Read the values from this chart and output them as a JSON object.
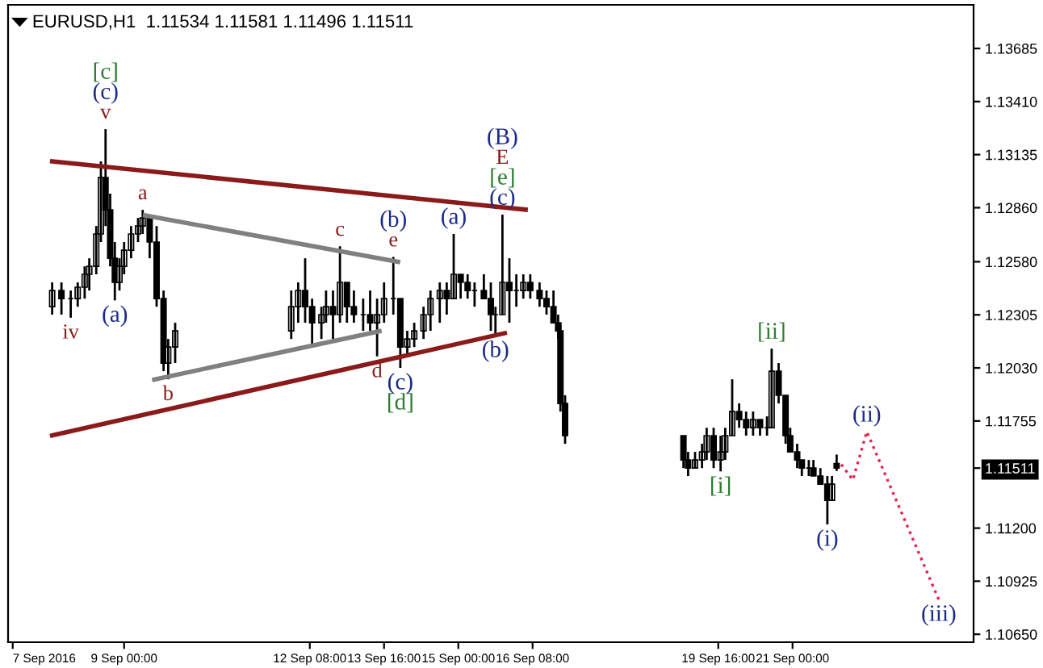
{
  "chart_data": {
    "type": "candlestick",
    "title": "EURUSD,H1  1.11534 1.11581 1.11496 1.11511",
    "x": [
      "2016-09-07T17:00",
      "2016-09-07T21:00",
      "2016-09-08T01:00",
      "2016-09-08T04:00",
      "2016-09-08T07:00",
      "2016-09-08T09:00",
      "2016-09-08T12:00",
      "2016-09-08T14:00",
      "2016-09-08T16:00",
      "2016-09-08T18:00",
      "2016-09-08T20:00",
      "2016-09-08T22:00",
      "2016-09-09T00:00",
      "2016-09-09T03:00",
      "2016-09-09T06:00",
      "2016-09-09T08:00",
      "2016-09-09T11:00",
      "2016-09-09T14:00",
      "2016-09-09T17:00",
      "2016-09-09T19:00",
      "2016-09-09T22:00",
      "2016-09-12T00:00",
      "2016-09-12T03:00",
      "2016-09-12T06:00",
      "2016-09-12T09:00",
      "2016-09-12T13:00",
      "2016-09-12T15:00",
      "2016-09-12T18:00",
      "2016-09-12T21:00",
      "2016-09-13T00:00",
      "2016-09-13T03:00",
      "2016-09-13T07:00",
      "2016-09-13T10:00",
      "2016-09-13T13:00",
      "2016-09-13T16:00",
      "2016-09-13T20:00",
      "2016-09-13T23:00",
      "2016-09-14T02:00",
      "2016-09-14T05:00",
      "2016-09-14T09:00",
      "2016-09-14T12:00",
      "2016-09-14T16:00",
      "2016-09-14T19:00",
      "2016-09-14T22:00",
      "2016-09-15T01:00",
      "2016-09-15T04:00",
      "2016-09-15T07:00",
      "2016-09-15T11:00",
      "2016-09-15T14:00",
      "2016-09-15T16:00",
      "2016-09-15T19:00",
      "2016-09-15T22:00",
      "2016-09-16T01:00",
      "2016-09-16T04:00",
      "2016-09-16T07:00",
      "2016-09-16T11:00",
      "2016-09-16T14:00",
      "2016-09-16T17:00",
      "2016-09-16T19:00",
      "2016-09-16T20:00",
      "2016-09-16T22:00",
      "2016-09-19T01:00",
      "2016-09-19T03:00",
      "2016-09-19T06:00",
      "2016-09-19T09:00",
      "2016-09-19T11:00",
      "2016-09-19T14:00",
      "2016-09-19T17:00",
      "2016-09-19T19:00",
      "2016-09-19T22:00",
      "2016-09-20T01:00",
      "2016-09-20T04:00",
      "2016-09-20T07:00",
      "2016-09-20T10:00",
      "2016-09-20T13:00",
      "2016-09-20T15:00",
      "2016-09-20T18:00",
      "2016-09-20T21:00",
      "2016-09-20T23:00",
      "2016-09-21T02:00",
      "2016-09-21T04:00",
      "2016-09-21T07:00",
      "2016-09-21T09:00",
      "2016-09-21T12:00",
      "2016-09-21T15:00",
      "2016-09-21T17:00",
      "2016-09-21T19:00"
    ],
    "ohlc": [
      [
        1.12347,
        1.12473,
        1.12306,
        1.12431
      ],
      [
        1.12431,
        1.12473,
        1.12306,
        1.12389
      ],
      [
        1.12389,
        1.12431,
        1.1229,
        1.12389
      ],
      [
        1.12389,
        1.12473,
        1.12347,
        1.12448
      ],
      [
        1.12448,
        1.12556,
        1.12389,
        1.12515
      ],
      [
        1.12515,
        1.12598,
        1.12431,
        1.12556
      ],
      [
        1.12556,
        1.12765,
        1.12515,
        1.12724
      ],
      [
        1.12724,
        1.131,
        1.12682,
        1.13016
      ],
      [
        1.13016,
        1.13267,
        1.12765,
        1.12849
      ],
      [
        1.12849,
        1.12933,
        1.12556,
        1.12598
      ],
      [
        1.12598,
        1.12682,
        1.1238,
        1.12473
      ],
      [
        1.12473,
        1.12598,
        1.12431,
        1.12556
      ],
      [
        1.12556,
        1.12682,
        1.12515,
        1.1264
      ],
      [
        1.1264,
        1.12765,
        1.12598,
        1.12724
      ],
      [
        1.12724,
        1.12807,
        1.12682,
        1.12765
      ],
      [
        1.12765,
        1.12849,
        1.12724,
        1.12807
      ],
      [
        1.12807,
        1.12807,
        1.12598,
        1.12682
      ],
      [
        1.12682,
        1.12765,
        1.12347,
        1.12389
      ],
      [
        1.12389,
        1.12431,
        1.12013,
        1.12055
      ],
      [
        1.12055,
        1.1218,
        1.11971,
        1.12138
      ],
      [
        1.12138,
        1.12264,
        1.12055,
        1.12222
      ],
      [
        1.12222,
        1.12431,
        1.1218,
        1.12347
      ],
      [
        1.12347,
        1.12473,
        1.12264,
        1.12431
      ],
      [
        1.12431,
        1.12598,
        1.12264,
        1.12347
      ],
      [
        1.12347,
        1.12389,
        1.12138,
        1.12264
      ],
      [
        1.12264,
        1.12347,
        1.1218,
        1.12306
      ],
      [
        1.12306,
        1.12431,
        1.12264,
        1.12347
      ],
      [
        1.12347,
        1.12431,
        1.1218,
        1.12306
      ],
      [
        1.12306,
        1.1266,
        1.12264,
        1.12473
      ],
      [
        1.12473,
        1.12473,
        1.12264,
        1.12347
      ],
      [
        1.12347,
        1.12431,
        1.12264,
        1.12306
      ],
      [
        1.12306,
        1.12389,
        1.12222,
        1.12306
      ],
      [
        1.12306,
        1.12431,
        1.12222,
        1.12264
      ],
      [
        1.12264,
        1.12389,
        1.1209,
        1.12306
      ],
      [
        1.12306,
        1.12473,
        1.12264,
        1.12389
      ],
      [
        1.12389,
        1.12605,
        1.12306,
        1.12389
      ],
      [
        1.12389,
        1.12389,
        1.1203,
        1.12138
      ],
      [
        1.12138,
        1.12222,
        1.12097,
        1.1218
      ],
      [
        1.1218,
        1.12264,
        1.12138,
        1.12222
      ],
      [
        1.12222,
        1.12347,
        1.1218,
        1.12306
      ],
      [
        1.12306,
        1.12431,
        1.12222,
        1.12389
      ],
      [
        1.12389,
        1.12473,
        1.12264,
        1.12431
      ],
      [
        1.12431,
        1.12473,
        1.12306,
        1.12389
      ],
      [
        1.12389,
        1.12724,
        1.12389,
        1.12515
      ],
      [
        1.12515,
        1.12515,
        1.12389,
        1.12473
      ],
      [
        1.12473,
        1.12515,
        1.12389,
        1.12431
      ],
      [
        1.12431,
        1.12473,
        1.12347,
        1.12431
      ],
      [
        1.12431,
        1.12515,
        1.12389,
        1.12389
      ],
      [
        1.12389,
        1.12473,
        1.12222,
        1.12306
      ],
      [
        1.12306,
        1.12347,
        1.12197,
        1.12306
      ],
      [
        1.12306,
        1.12824,
        1.12306,
        1.12473
      ],
      [
        1.12473,
        1.12598,
        1.12264,
        1.12431
      ],
      [
        1.12431,
        1.12515,
        1.12347,
        1.12431
      ],
      [
        1.12431,
        1.12515,
        1.12389,
        1.12473
      ],
      [
        1.12473,
        1.12515,
        1.12389,
        1.12431
      ],
      [
        1.12431,
        1.12473,
        1.12347,
        1.12389
      ],
      [
        1.12389,
        1.12431,
        1.12306,
        1.12347
      ],
      [
        1.12347,
        1.12431,
        1.12264,
        1.12264
      ],
      [
        1.12264,
        1.12306,
        1.1218,
        1.12222
      ],
      [
        1.12222,
        1.12264,
        1.11804,
        1.11846
      ],
      [
        1.11846,
        1.11888,
        1.11637,
        1.11679
      ],
      [
        1.11679,
        1.11679,
        1.11511,
        1.11553
      ],
      [
        1.11553,
        1.11595,
        1.1147,
        1.11511
      ],
      [
        1.11511,
        1.11595,
        1.11511,
        1.11553
      ],
      [
        1.11553,
        1.11637,
        1.11511,
        1.11595
      ],
      [
        1.11595,
        1.1172,
        1.11553,
        1.11679
      ],
      [
        1.11679,
        1.1172,
        1.11511,
        1.11553
      ],
      [
        1.11553,
        1.11679,
        1.11494,
        1.11595
      ],
      [
        1.11595,
        1.1172,
        1.11553,
        1.11679
      ],
      [
        1.11679,
        1.11971,
        1.11679,
        1.11804
      ],
      [
        1.11804,
        1.11846,
        1.1172,
        1.11762
      ],
      [
        1.11762,
        1.11804,
        1.11679,
        1.1172
      ],
      [
        1.1172,
        1.11804,
        1.11679,
        1.11762
      ],
      [
        1.11762,
        1.11762,
        1.11679,
        1.1172
      ],
      [
        1.1172,
        1.11779,
        1.11679,
        1.1172
      ],
      [
        1.1172,
        1.1213,
        1.1172,
        1.12013
      ],
      [
        1.12013,
        1.12055,
        1.11846,
        1.11888
      ],
      [
        1.11888,
        1.11888,
        1.11637,
        1.11679
      ],
      [
        1.11679,
        1.1172,
        1.11595,
        1.11595
      ],
      [
        1.11595,
        1.11637,
        1.11511,
        1.11553
      ],
      [
        1.11553,
        1.11553,
        1.1147,
        1.11511
      ],
      [
        1.11511,
        1.11553,
        1.1147,
        1.11511
      ],
      [
        1.11511,
        1.11553,
        1.1147,
        1.1147
      ],
      [
        1.1147,
        1.11511,
        1.11428,
        1.11428
      ],
      [
        1.11428,
        1.1147,
        1.11219,
        1.11344
      ],
      [
        1.11344,
        1.1147,
        1.11344,
        1.11428
      ],
      [
        1.11534,
        1.11581,
        1.11496,
        1.11511
      ]
    ],
    "series": [
      {
        "type": "line",
        "color": "#8b1a1a",
        "line_style": "solid",
        "x": [
          "2016-09-07T17:00",
          "2016-09-16T05:00"
        ],
        "values": [
          1.131,
          1.1285
        ]
      },
      {
        "type": "line",
        "color": "#8b1a1a",
        "line_style": "solid",
        "x": [
          "2016-09-07T17:00",
          "2016-09-15T20:00"
        ],
        "values": [
          1.1168,
          1.1221
        ]
      },
      {
        "type": "line",
        "color": "#808080",
        "line_style": "solid",
        "x": [
          "2016-09-09T09:00",
          "2016-09-13T22:00"
        ],
        "values": [
          1.1282,
          1.1258
        ]
      },
      {
        "type": "line",
        "color": "#808080",
        "line_style": "solid",
        "x": [
          "2016-09-09T13:00",
          "2016-09-13T14:00"
        ],
        "values": [
          1.1197,
          1.1222
        ]
      },
      {
        "type": "line",
        "color": "#e8204a",
        "line_style": "dotted",
        "x": [
          "2016-09-21T21:00",
          "2016-09-22T02:00",
          "2016-09-22T08:00",
          "2016-09-23T15:00"
        ],
        "values": [
          1.1153,
          1.1145,
          1.117,
          1.1083
        ]
      }
    ],
    "xlim": [
      "2016-09-06T22:00",
      "2016-09-24T06:00"
    ],
    "xticks": [
      {
        "value": "2016-09-07T00:00",
        "label": "7 Sep 2016"
      },
      {
        "value": "2016-09-09T00:00",
        "label": "9 Sep 00:00"
      },
      {
        "value": "2016-09-12T08:00",
        "label": "12 Sep 08:00"
      },
      {
        "value": "2016-09-13T16:00",
        "label": "13 Sep 16:00"
      },
      {
        "value": "2016-09-15T00:00",
        "label": "15 Sep 00:00"
      },
      {
        "value": "2016-09-16T08:00",
        "label": "16 Sep 08:00"
      },
      {
        "value": "2016-09-19T16:00",
        "label": "19 Sep 16:00"
      },
      {
        "value": "2016-09-21T00:00",
        "label": "21 Sep 00:00"
      }
    ],
    "ylim": [
      1.10609,
      1.13911
    ],
    "yticks": [
      {
        "value": 1.1065,
        "label": "1.10650"
      },
      {
        "value": 1.10925,
        "label": "1.10925"
      },
      {
        "value": 1.112,
        "label": "1.11200"
      },
      {
        "value": 1.11511,
        "label": "1.11511"
      },
      {
        "value": 1.11755,
        "label": "1.11755"
      },
      {
        "value": 1.1203,
        "label": "1.12030"
      },
      {
        "value": 1.12305,
        "label": "1.12305"
      },
      {
        "value": 1.1258,
        "label": "1.12580"
      },
      {
        "value": 1.1286,
        "label": "1.12860"
      },
      {
        "value": 1.13135,
        "label": "1.13135"
      },
      {
        "value": 1.1341,
        "label": "1.13410"
      },
      {
        "value": 1.13685,
        "label": "1.13685"
      }
    ],
    "grid": false,
    "legend": false,
    "annotations": [
      {
        "text": "v",
        "x": "2016-09-08T16:00",
        "y": 1.13267
      },
      {
        "text": "(c)",
        "x": "2016-09-08T16:00",
        "y": 1.13267
      },
      {
        "text": "[c]",
        "x": "2016-09-08T16:00",
        "y": 1.13267
      },
      {
        "text": "iv",
        "x": "2016-09-08T01:00",
        "y": 1.1229
      },
      {
        "text": "(a)",
        "x": "2016-09-08T20:00",
        "y": 1.1238
      },
      {
        "text": "a",
        "x": "2016-09-09T08:00",
        "y": 1.12849
      },
      {
        "text": "b",
        "x": "2016-09-09T19:00",
        "y": 1.11971
      },
      {
        "text": "c",
        "x": "2016-09-12T21:00",
        "y": 1.1266
      },
      {
        "text": "d",
        "x": "2016-09-13T13:00",
        "y": 1.1209
      },
      {
        "text": "e",
        "x": "2016-09-13T20:00",
        "y": 1.12605
      },
      {
        "text": "(b)",
        "x": "2016-09-13T20:00",
        "y": 1.12605
      },
      {
        "text": "(c)",
        "x": "2016-09-13T23:00",
        "y": 1.1203
      },
      {
        "text": "[d]",
        "x": "2016-09-13T23:00",
        "y": 1.1203
      },
      {
        "text": "(a)",
        "x": "2016-09-14T22:00",
        "y": 1.12724
      },
      {
        "text": "(b)",
        "x": "2016-09-15T16:00",
        "y": 1.12197
      },
      {
        "text": "(c)",
        "x": "2016-09-15T19:00",
        "y": 1.12824
      },
      {
        "text": "[e]",
        "x": "2016-09-15T19:00",
        "y": 1.12824
      },
      {
        "text": "E",
        "x": "2016-09-15T19:00",
        "y": 1.12824
      },
      {
        "text": "(B)",
        "x": "2016-09-15T19:00",
        "y": 1.12824
      },
      {
        "text": "[ii]",
        "x": "2016-09-20T15:00",
        "y": 1.1213
      },
      {
        "text": "[i]",
        "x": "2016-09-19T17:00",
        "y": 1.11494
      },
      {
        "text": "(i)",
        "x": "2016-09-21T15:00",
        "y": 1.11219
      },
      {
        "text": "(ii)",
        "x": "2016-09-22T08:00",
        "y": 1.117
      },
      {
        "text": "(iii)",
        "x": "2016-09-23T15:00",
        "y": 1.1083
      }
    ]
  }
}
